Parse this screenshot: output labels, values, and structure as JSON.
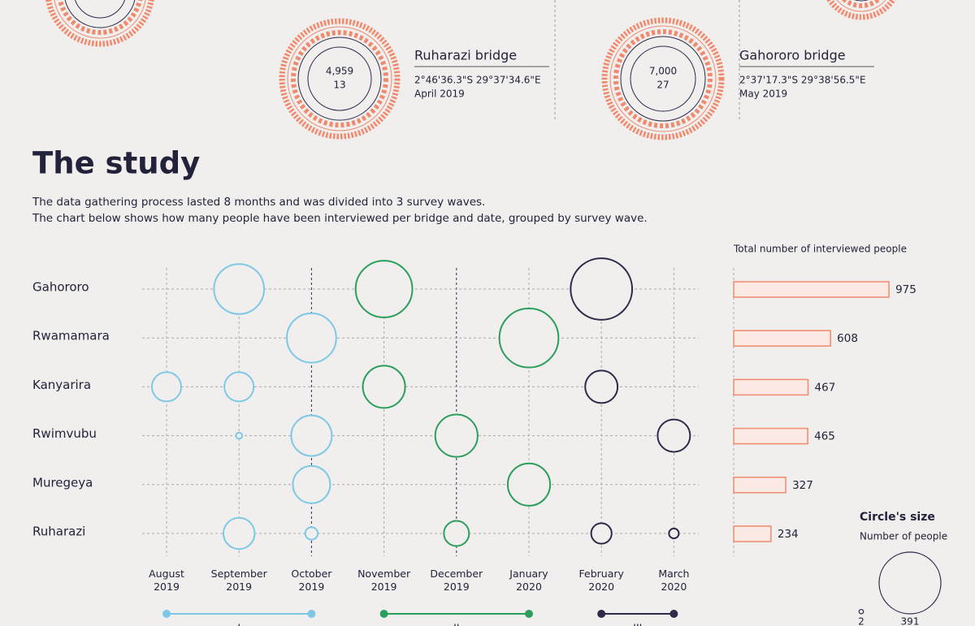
{
  "bridges": [
    {
      "name": "Ruharazi bridge",
      "coordinates": "2°46'36.3\"S 29°37'34.6\"E",
      "date": "April 2019",
      "count_a": "4,959",
      "count_b": "13"
    },
    {
      "name": "Gahororo bridge",
      "coordinates": "2°37'17.3\"S 29°38'56.5\"E",
      "date": "May 2019",
      "count_a": "7,000",
      "count_b": "27"
    }
  ],
  "study": {
    "title": "The study",
    "description": [
      "The data gathering process lasted 8 months and was divided into 3 survey waves.",
      "The chart below shows how many people have been interviewed per bridge and date, grouped by survey wave."
    ]
  },
  "chart_data": [
    {
      "type": "bubble",
      "categories": [
        "August 2019",
        "September 2019",
        "October 2019",
        "November 2019",
        "December 2019",
        "January 2020",
        "February 2020",
        "March 2020"
      ],
      "rows": [
        "Gahororo",
        "Rwamamara",
        "Kanyarira",
        "Rwimvubu",
        "Muregeya",
        "Ruharazi"
      ],
      "values": [
        [
          null,
          257,
          null,
          330,
          null,
          null,
          388,
          null
        ],
        [
          null,
          null,
          250,
          null,
          null,
          358,
          null,
          null
        ],
        [
          88,
          88,
          null,
          183,
          null,
          null,
          108,
          null
        ],
        [
          null,
          4,
          169,
          null,
          184,
          null,
          null,
          108
        ],
        [
          null,
          null,
          143,
          null,
          null,
          184,
          null,
          null
        ],
        [
          null,
          100,
          16,
          null,
          65,
          null,
          43,
          10
        ]
      ],
      "column_colors": [
        "#7ec8e6",
        "#7ec8e6",
        "#7ec8e6",
        "#2b9e5c",
        "#2b9e5c",
        "#2b9e5c",
        "#2d2a4a",
        "#2d2a4a"
      ],
      "waves": [
        {
          "name": "I",
          "color": "#7ec8e6"
        },
        {
          "name": "II",
          "color": "#2b9e5c"
        },
        {
          "name": "III",
          "color": "#2d2a4a"
        }
      ],
      "size_legend": {
        "title": "Circle's size",
        "subtitle": "Number of people",
        "values": [
          2,
          391
        ]
      }
    },
    {
      "type": "bar",
      "title": "Total number of interviewed people",
      "values": [
        975,
        608,
        467,
        465,
        327,
        234
      ],
      "color": "#f08a6e",
      "xlim": [
        0,
        1000
      ]
    }
  ]
}
